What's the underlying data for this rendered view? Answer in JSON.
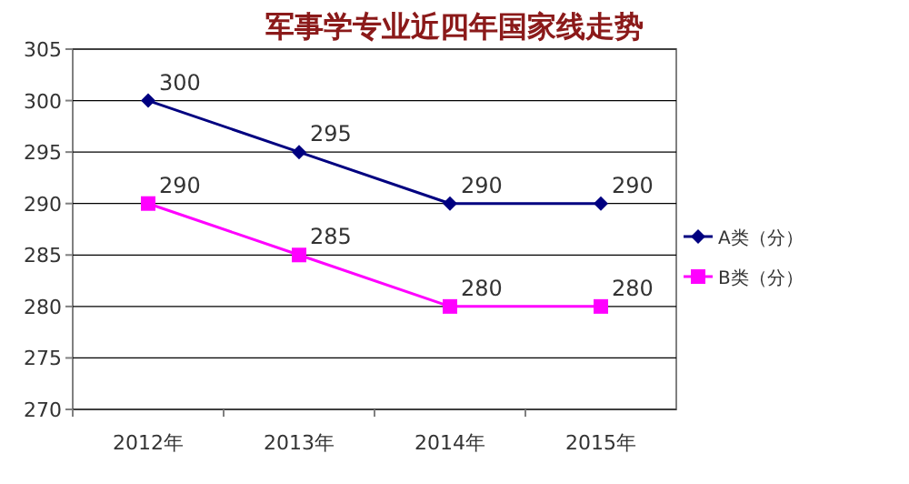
{
  "chart_data": {
    "type": "line",
    "title": "军事学专业近四年国家线走势",
    "categories": [
      "2012年",
      "2013年",
      "2014年",
      "2015年"
    ],
    "series": [
      {
        "name": "A类（分）",
        "color": "#000080",
        "marker": "diamond",
        "values": [
          300,
          295,
          290,
          290
        ]
      },
      {
        "name": "B类（分）",
        "color": "#ff00ff",
        "marker": "square",
        "values": [
          290,
          285,
          280,
          280
        ]
      }
    ],
    "ylim": [
      270,
      305
    ],
    "yticks": [
      270,
      275,
      280,
      285,
      290,
      295,
      300,
      305
    ],
    "grid": "y",
    "legend": "right",
    "data_labels": true
  }
}
